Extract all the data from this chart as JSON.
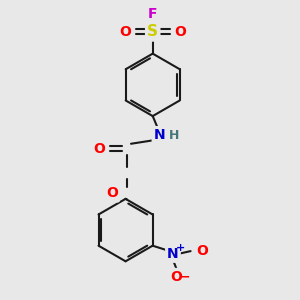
{
  "background_color": "#e8e8e8",
  "bond_color": "#1a1a1a",
  "bond_width": 1.5,
  "atom_colors": {
    "F": "#cc00cc",
    "S": "#cccc00",
    "O": "#ff0000",
    "N_amine": "#0000cc",
    "H": "#447777",
    "N_nitro": "#0000cc",
    "O_nitro": "#ff0000"
  },
  "font_size": 10,
  "fig_width": 3.0,
  "fig_height": 3.0,
  "dpi": 100
}
